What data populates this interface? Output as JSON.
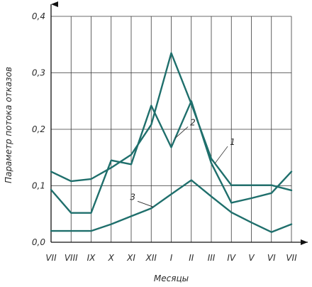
{
  "chart_data": {
    "type": "line",
    "xlabel": "Месяцы",
    "ylabel": "Параметр потока отказов",
    "categories": [
      "VII",
      "VIII",
      "IX",
      "X",
      "XI",
      "XII",
      "I",
      "II",
      "III",
      "IV",
      "V",
      "VI",
      "VII"
    ],
    "ylim": [
      0,
      0.4
    ],
    "yticks": [
      "0,0",
      "0,1",
      "0,2",
      "0,3",
      "0,4"
    ],
    "grid": true,
    "line_color": "#1f6f6c",
    "series": [
      {
        "name": "1",
        "values": [
          0.125,
          0.108,
          0.112,
          0.132,
          0.155,
          0.208,
          0.335,
          0.245,
          0.148,
          0.101,
          0.101,
          0.101,
          0.092
        ]
      },
      {
        "name": "2",
        "values": [
          0.093,
          0.052,
          0.052,
          0.145,
          0.138,
          0.242,
          0.168,
          0.25,
          0.14,
          0.07,
          0.078,
          0.087,
          0.125
        ]
      },
      {
        "name": "3",
        "values": [
          0.02,
          0.02,
          0.02,
          0.032,
          0.046,
          0.06,
          0.085,
          0.11,
          0.081,
          0.053,
          0.035,
          0.018,
          0.032
        ]
      }
    ]
  }
}
